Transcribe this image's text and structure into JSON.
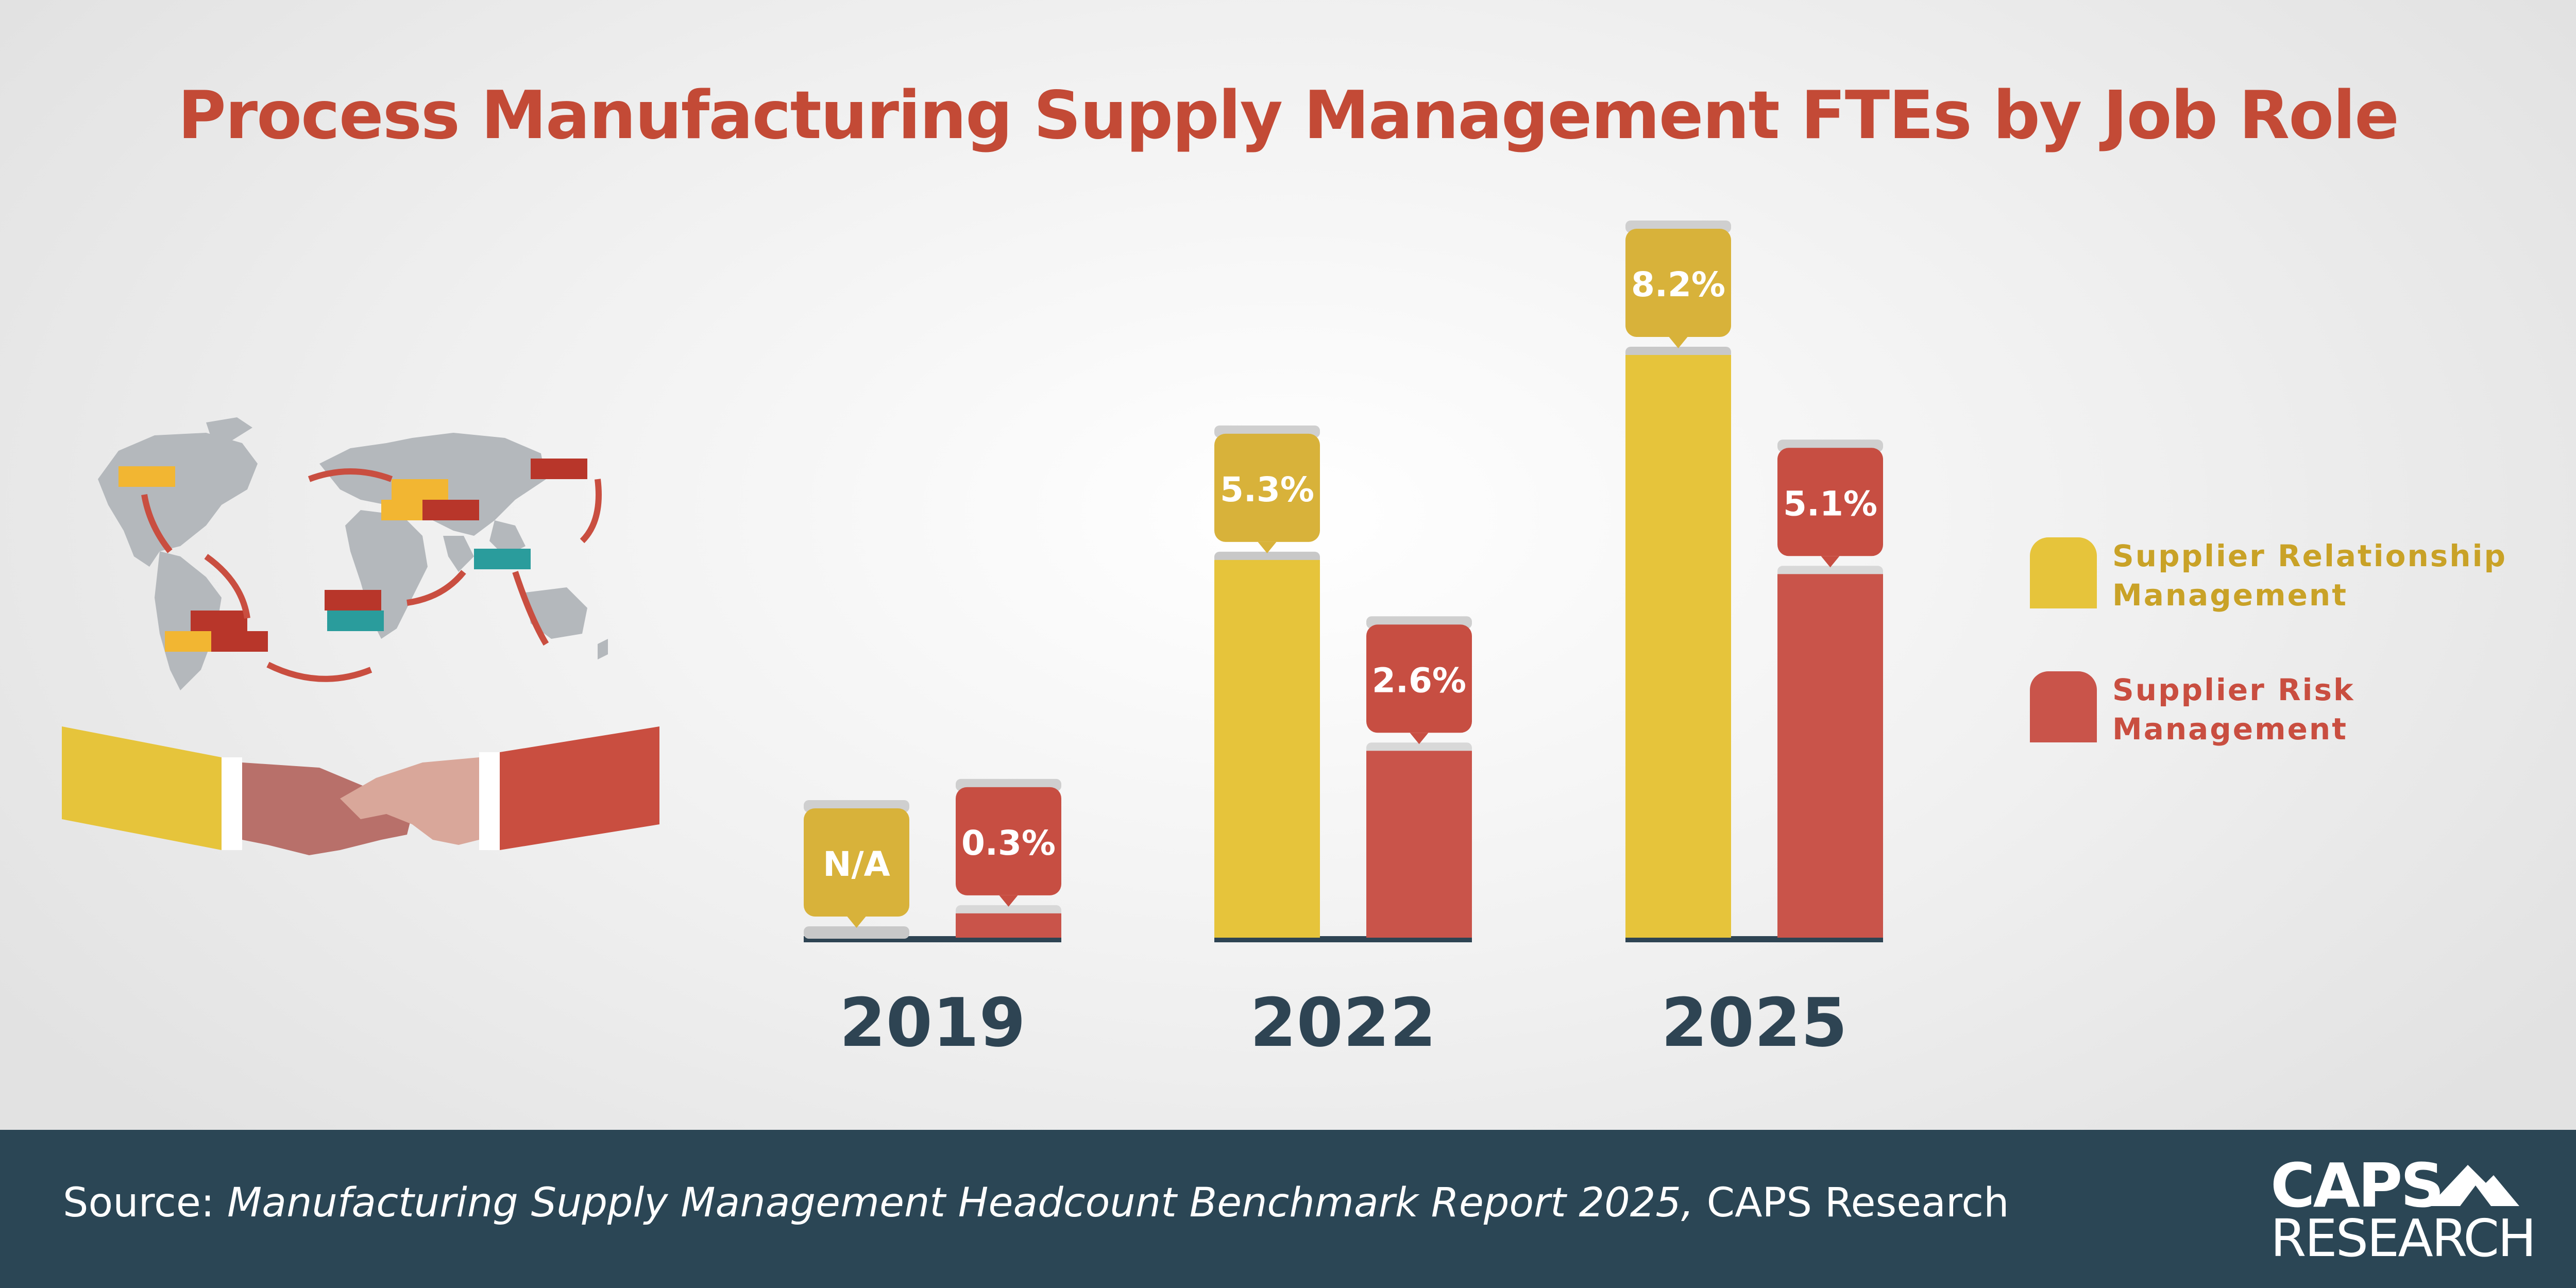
{
  "colors": {
    "srm": "#e6c43b",
    "srm_label": "#d8b23a",
    "srm_text": "#c9a227",
    "srm_cap": "#c8c8c8",
    "srp": "#c9544a",
    "srp_label": "#c74e42",
    "srp_text": "#c94e40",
    "srp_cap": "#d8d8d8",
    "title": "#c34a36",
    "axis": "#2e4453",
    "footer": "#2b4655"
  },
  "chart_data": {
    "type": "bar",
    "title": "Process Manufacturing Supply Management FTEs by Job Role",
    "categories": [
      "2019",
      "2022",
      "2025"
    ],
    "series": [
      {
        "name": "Supplier Relationship Management",
        "values": [
          null,
          5.3,
          8.2
        ],
        "labels": [
          "N/A",
          "5.3%",
          "8.2%"
        ]
      },
      {
        "name": "Supplier Risk Management",
        "values": [
          0.3,
          2.6,
          5.1
        ],
        "labels": [
          "0.3%",
          "2.6%",
          "5.1%"
        ]
      }
    ],
    "unit": "%",
    "ylim": [
      0,
      8.2
    ],
    "legend_position": "right",
    "grid": false
  },
  "legend": {
    "srm_line1": "Supplier Relationship",
    "srm_line2": "Management",
    "srp_line1": "Supplier Risk",
    "srp_line2": "Management"
  },
  "footer": {
    "source_prefix": "Source: ",
    "source_title": "Manufacturing Supply Management Headcount Benchmark Report 2025,",
    "source_suffix": " CAPS Research",
    "logo_line1": "CAPS",
    "logo_line2": "RESEARCH"
  },
  "illustration": {
    "icons": [
      "world-map-icon",
      "shipping-container-icon",
      "handshake-icon"
    ]
  }
}
